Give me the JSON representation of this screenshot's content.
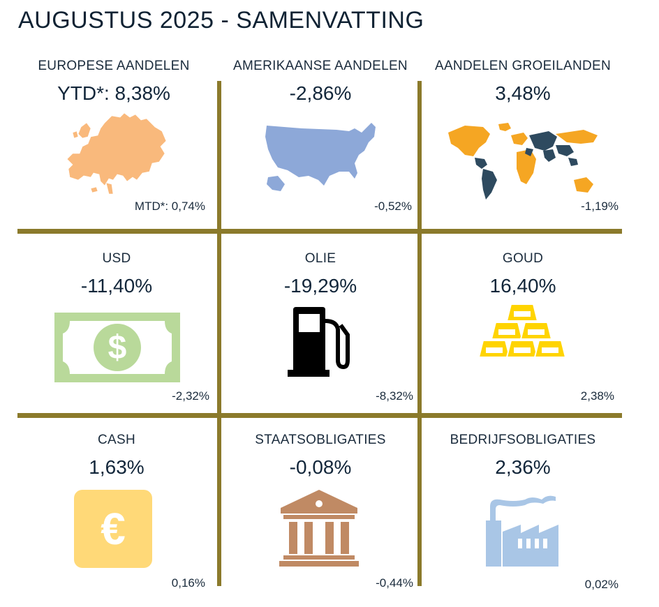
{
  "header": {
    "title": "AUGUSTUS 2025 - SAMENVATTING"
  },
  "cells": [
    {
      "label": "EUROPESE AANDELEN",
      "value": "YTD*: 8,38%",
      "mtd": "MTD*: 0,74%",
      "icon": "europe-map-icon"
    },
    {
      "label": "AMERIKAANSE AANDELEN",
      "value": "-2,86%",
      "mtd": "-0,52%",
      "icon": "usa-map-icon"
    },
    {
      "label": "AANDELEN GROEILANDEN",
      "value": "3,48%",
      "mtd": "-1,19%",
      "icon": "world-map-icon"
    },
    {
      "label": "USD",
      "value": "-11,40%",
      "mtd": "-2,32%",
      "icon": "dollar-bill-icon"
    },
    {
      "label": "OLIE",
      "value": "-19,29%",
      "mtd": "-8,32%",
      "icon": "fuel-pump-icon"
    },
    {
      "label": "GOUD",
      "value": "16,40%",
      "mtd": "2,38%",
      "icon": "gold-bars-icon"
    },
    {
      "label": "CASH",
      "value": "1,63%",
      "mtd": "0,16%",
      "icon": "euro-icon"
    },
    {
      "label": "STAATSOBLIGATIES",
      "value": "-0,08%",
      "mtd": "-0,44%",
      "icon": "government-building-icon"
    },
    {
      "label": "BEDRIJFSOBLIGATIES",
      "value": "2,36%",
      "mtd": "0,02%",
      "icon": "factory-icon"
    }
  ],
  "colors": {
    "divider": "#8b7a2b",
    "europe": "#f9b97c",
    "usa": "#8da8d8",
    "world_emerging": "#f5a623",
    "world_other": "#2e4a5f",
    "dollar": "#b9d99a",
    "fuel": "#000000",
    "gold": "#ffd400",
    "euro": "#ffd978",
    "building": "#c08a64",
    "factory": "#a9c6e6"
  }
}
